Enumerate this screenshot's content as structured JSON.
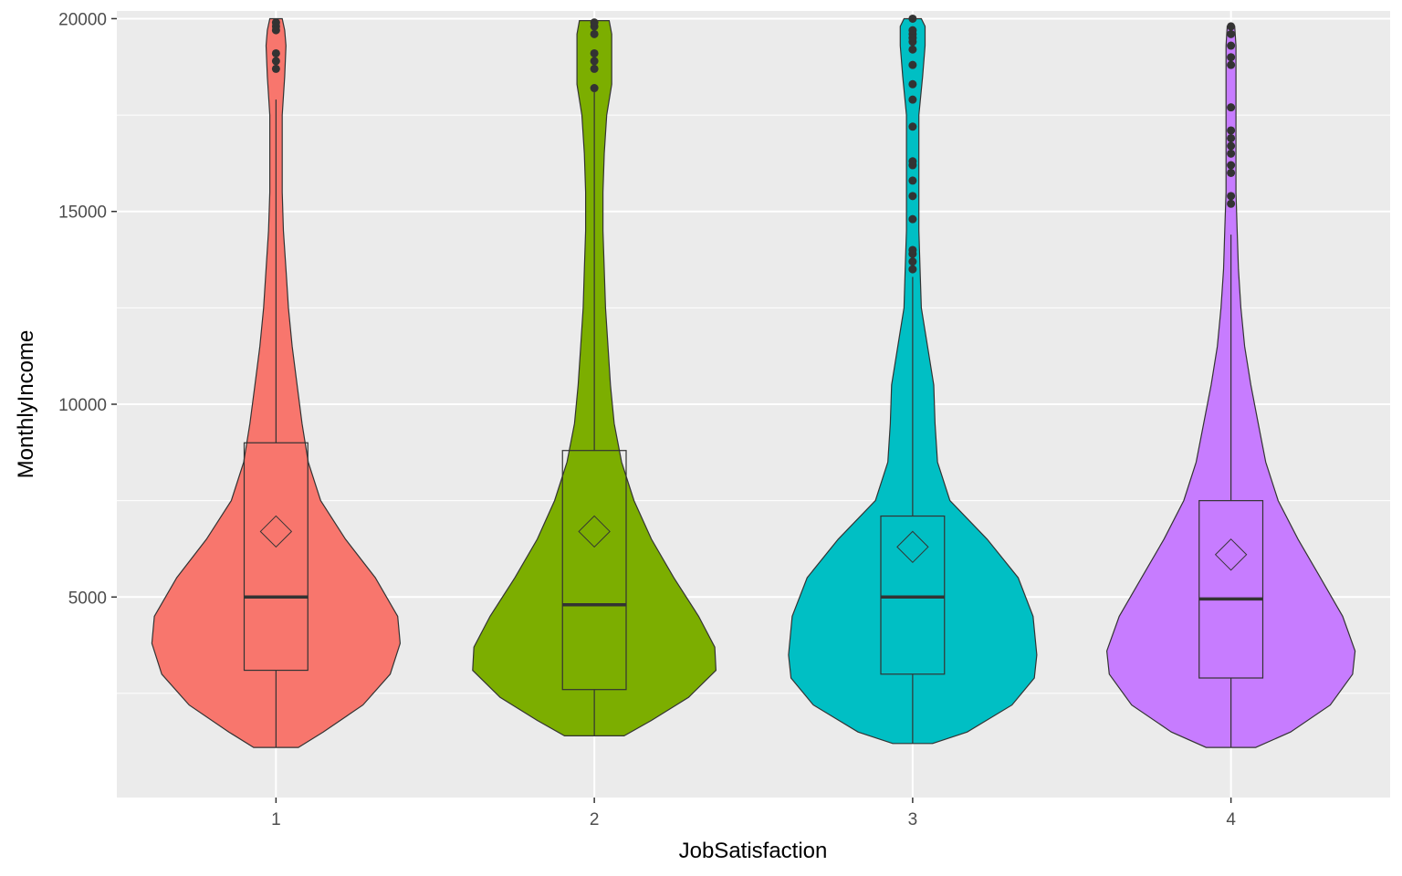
{
  "chart_data": {
    "type": "violin",
    "xlabel": "JobSatisfaction",
    "ylabel": "MonthlyIncome",
    "ylim": [
      -200,
      20200
    ],
    "y_ticks": [
      5000,
      10000,
      15000,
      20000
    ],
    "y_minor_ticks": [
      2500,
      7500,
      12500,
      17500
    ],
    "categories": [
      "1",
      "2",
      "3",
      "4"
    ],
    "grid": true,
    "panel_background": "#EBEBEB",
    "series": [
      {
        "category": "1",
        "color": "#F8766D",
        "box": {
          "min": 1100,
          "q1": 3100,
          "median": 5000,
          "q3": 9000,
          "max": 17900
        },
        "mean": 6700,
        "outliers": [
          18700,
          18900,
          19100,
          19700,
          19800,
          19900
        ],
        "violin_profile": [
          [
            1100,
            0.18
          ],
          [
            1500,
            0.38
          ],
          [
            2200,
            0.7
          ],
          [
            3000,
            0.92
          ],
          [
            3800,
            1.0
          ],
          [
            4500,
            0.98
          ],
          [
            5500,
            0.8
          ],
          [
            6500,
            0.56
          ],
          [
            7500,
            0.36
          ],
          [
            8500,
            0.26
          ],
          [
            9500,
            0.21
          ],
          [
            10500,
            0.17
          ],
          [
            11500,
            0.13
          ],
          [
            12500,
            0.1
          ],
          [
            13500,
            0.08
          ],
          [
            14500,
            0.06
          ],
          [
            15500,
            0.05
          ],
          [
            16500,
            0.05
          ],
          [
            17500,
            0.05
          ],
          [
            18500,
            0.07
          ],
          [
            19300,
            0.08
          ],
          [
            19700,
            0.07
          ],
          [
            20000,
            0.05
          ]
        ]
      },
      {
        "category": "2",
        "color": "#7CAE00",
        "box": {
          "min": 1400,
          "q1": 2600,
          "median": 4800,
          "q3": 8800,
          "max": 18100
        },
        "mean": 6700,
        "outliers": [
          18200,
          18700,
          18900,
          19100,
          19600,
          19800,
          19900
        ],
        "violin_profile": [
          [
            1400,
            0.24
          ],
          [
            1800,
            0.46
          ],
          [
            2400,
            0.76
          ],
          [
            3100,
            0.98
          ],
          [
            3700,
            0.97
          ],
          [
            4500,
            0.84
          ],
          [
            5500,
            0.64
          ],
          [
            6500,
            0.46
          ],
          [
            7500,
            0.32
          ],
          [
            8500,
            0.22
          ],
          [
            9500,
            0.16
          ],
          [
            10500,
            0.13
          ],
          [
            11500,
            0.11
          ],
          [
            12500,
            0.09
          ],
          [
            13500,
            0.08
          ],
          [
            14500,
            0.07
          ],
          [
            15500,
            0.07
          ],
          [
            16500,
            0.08
          ],
          [
            17500,
            0.1
          ],
          [
            18300,
            0.14
          ],
          [
            19000,
            0.14
          ],
          [
            19600,
            0.14
          ],
          [
            19950,
            0.12
          ]
        ]
      },
      {
        "category": "3",
        "color": "#00BFC4",
        "box": {
          "min": 1200,
          "q1": 3000,
          "median": 5000,
          "q3": 7100,
          "max": 13300
        },
        "mean": 6300,
        "outliers": [
          13500,
          13700,
          13900,
          14000,
          14800,
          15400,
          15800,
          16200,
          16300,
          17200,
          17900,
          18300,
          18800,
          19200,
          19400,
          19500,
          19600,
          19700,
          20000
        ],
        "violin_profile": [
          [
            1200,
            0.16
          ],
          [
            1500,
            0.44
          ],
          [
            2200,
            0.8
          ],
          [
            2900,
            0.98
          ],
          [
            3500,
            1.0
          ],
          [
            4500,
            0.97
          ],
          [
            5500,
            0.85
          ],
          [
            6500,
            0.6
          ],
          [
            7500,
            0.3
          ],
          [
            8500,
            0.2
          ],
          [
            9500,
            0.18
          ],
          [
            10500,
            0.17
          ],
          [
            11500,
            0.12
          ],
          [
            12500,
            0.07
          ],
          [
            13500,
            0.06
          ],
          [
            14500,
            0.05
          ],
          [
            15500,
            0.05
          ],
          [
            16500,
            0.05
          ],
          [
            17500,
            0.05
          ],
          [
            18500,
            0.08
          ],
          [
            19300,
            0.1
          ],
          [
            19800,
            0.1
          ],
          [
            20000,
            0.07
          ]
        ]
      },
      {
        "category": "4",
        "color": "#C77CFF",
        "box": {
          "min": 1100,
          "q1": 2900,
          "median": 4950,
          "q3": 7500,
          "max": 14400
        },
        "mean": 6100,
        "outliers": [
          15200,
          15400,
          16000,
          16200,
          16500,
          16700,
          16900,
          17100,
          17700,
          18800,
          19000,
          19300,
          19600,
          19800
        ],
        "violin_profile": [
          [
            1100,
            0.2
          ],
          [
            1500,
            0.48
          ],
          [
            2200,
            0.8
          ],
          [
            3000,
            0.98
          ],
          [
            3600,
            1.0
          ],
          [
            4500,
            0.9
          ],
          [
            5500,
            0.72
          ],
          [
            6500,
            0.54
          ],
          [
            7500,
            0.38
          ],
          [
            8500,
            0.28
          ],
          [
            9500,
            0.22
          ],
          [
            10500,
            0.16
          ],
          [
            11500,
            0.11
          ],
          [
            12500,
            0.08
          ],
          [
            13500,
            0.06
          ],
          [
            14500,
            0.05
          ],
          [
            15500,
            0.04
          ],
          [
            16500,
            0.04
          ],
          [
            17500,
            0.04
          ],
          [
            18500,
            0.04
          ],
          [
            19300,
            0.04
          ],
          [
            19800,
            0.03
          ]
        ]
      }
    ]
  }
}
